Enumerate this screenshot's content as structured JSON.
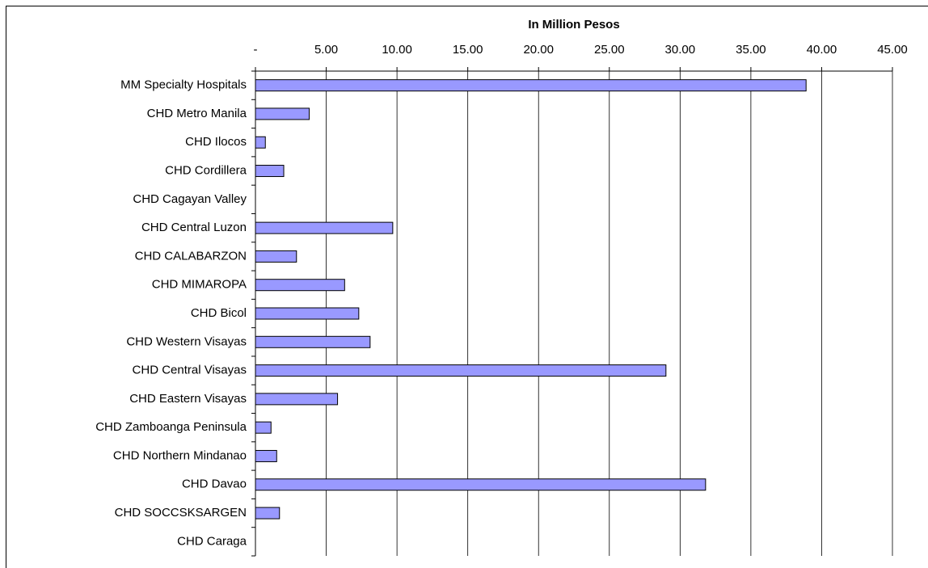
{
  "chart_data": {
    "type": "bar",
    "orientation": "horizontal",
    "title": "In Million Pesos",
    "categories": [
      "MM Specialty Hospitals",
      "CHD Metro Manila",
      "CHD Ilocos",
      "CHD Cordillera",
      "CHD Cagayan Valley",
      "CHD Central Luzon",
      "CHD CALABARZON",
      "CHD MIMAROPA",
      "CHD Bicol",
      "CHD Western Visayas",
      "CHD Central Visayas",
      "CHD Eastern Visayas",
      "CHD Zamboanga Peninsula",
      "CHD Northern Mindanao",
      "CHD Davao",
      "CHD SOCCSKSARGEN",
      "CHD Caraga"
    ],
    "values": [
      38.9,
      3.8,
      0.7,
      2.0,
      0,
      9.7,
      2.9,
      6.3,
      7.3,
      8.1,
      29.0,
      5.8,
      1.1,
      1.5,
      31.8,
      1.7,
      0
    ],
    "color": "#9999ff",
    "xlim": [
      0,
      45
    ],
    "xticks": [
      {
        "value": 0,
        "label": "-"
      },
      {
        "value": 5,
        "label": "5.00"
      },
      {
        "value": 10,
        "label": "10.00"
      },
      {
        "value": 15,
        "label": "15.00"
      },
      {
        "value": 20,
        "label": "20.00"
      },
      {
        "value": 25,
        "label": "25.00"
      },
      {
        "value": 30,
        "label": "30.00"
      },
      {
        "value": 35,
        "label": "35.00"
      },
      {
        "value": 40,
        "label": "40.00"
      },
      {
        "value": 45,
        "label": "45.00"
      }
    ],
    "grid": true
  }
}
